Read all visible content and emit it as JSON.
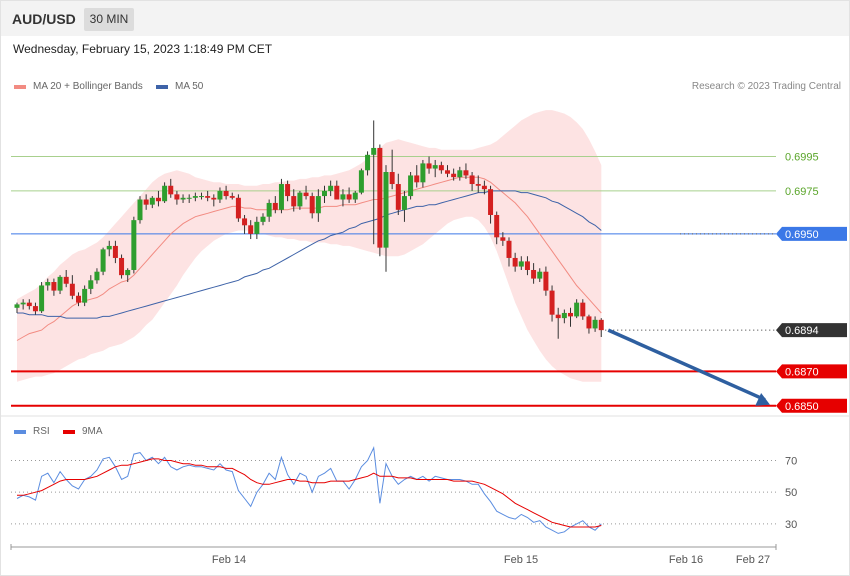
{
  "header": {
    "symbol": "AUD/USD",
    "timeframe": "30 MIN",
    "datetime": "Wednesday, February 15, 2023 1:18:49 PM CET"
  },
  "legend": {
    "ma20_label": "MA 20 + Bollinger Bands",
    "ma20_color": "#f28b82",
    "ma50_label": "MA 50",
    "ma50_color": "#3e63a8"
  },
  "credit": "Research © 2023 Trading Central",
  "colors": {
    "up": "#2e9e2e",
    "down": "#d42020",
    "band_fill": "#fde3e3",
    "support_line": "#e60000",
    "pivot_line": "#3b78e7",
    "resistance_line": "#a8d08d",
    "rsi": "#5b8de0",
    "rsi_ma": "#e60000",
    "arrow": "#2e5fa0"
  },
  "chart_data": [
    {
      "type": "candlestick",
      "ylim": [
        0.68458,
        0.70308
      ],
      "last_price": "0.6894",
      "levels": [
        {
          "label": "0.6995",
          "value": 0.6995,
          "kind": "resistance"
        },
        {
          "label": "0.6975",
          "value": 0.6975,
          "kind": "resistance"
        },
        {
          "label": "0.6950",
          "value": 0.695,
          "kind": "pivot"
        },
        {
          "label": "0.6870",
          "value": 0.687,
          "kind": "support"
        },
        {
          "label": "0.6850",
          "value": 0.685,
          "kind": "support"
        }
      ],
      "arrow": {
        "from": 0.6894,
        "to": 0.685
      },
      "x_ticks": [
        "Feb 14",
        "Feb 15",
        "Feb 16",
        "Feb 27"
      ],
      "candles": [
        [
          0.6907,
          0.691,
          0.6904,
          0.6909
        ],
        [
          0.6909,
          0.6912,
          0.6906,
          0.691
        ],
        [
          0.691,
          0.6912,
          0.6906,
          0.6908
        ],
        [
          0.6908,
          0.691,
          0.6903,
          0.6905
        ],
        [
          0.6905,
          0.6922,
          0.6904,
          0.692
        ],
        [
          0.692,
          0.6924,
          0.6917,
          0.6922
        ],
        [
          0.6922,
          0.6924,
          0.6914,
          0.6917
        ],
        [
          0.6917,
          0.6926,
          0.6915,
          0.6925
        ],
        [
          0.6925,
          0.6929,
          0.6919,
          0.6921
        ],
        [
          0.6921,
          0.6926,
          0.6912,
          0.6914
        ],
        [
          0.6914,
          0.6916,
          0.6908,
          0.691
        ],
        [
          0.691,
          0.692,
          0.6908,
          0.6918
        ],
        [
          0.6918,
          0.6926,
          0.6915,
          0.6923
        ],
        [
          0.6923,
          0.693,
          0.6921,
          0.6928
        ],
        [
          0.6928,
          0.6942,
          0.6926,
          0.6941
        ],
        [
          0.6941,
          0.6946,
          0.6937,
          0.6943
        ],
        [
          0.6943,
          0.6946,
          0.6933,
          0.6936
        ],
        [
          0.6936,
          0.6938,
          0.6924,
          0.6926
        ],
        [
          0.6926,
          0.693,
          0.6922,
          0.6929
        ],
        [
          0.6929,
          0.696,
          0.6927,
          0.6958
        ],
        [
          0.6958,
          0.6972,
          0.6956,
          0.697
        ],
        [
          0.697,
          0.6973,
          0.6964,
          0.6967
        ],
        [
          0.6967,
          0.6972,
          0.6965,
          0.6971
        ],
        [
          0.6971,
          0.6975,
          0.6966,
          0.6969
        ],
        [
          0.6969,
          0.698,
          0.6968,
          0.6978
        ],
        [
          0.6978,
          0.6982,
          0.6971,
          0.6973
        ],
        [
          0.6973,
          0.6975,
          0.6967,
          0.697
        ],
        [
          0.697,
          0.6973,
          0.6968,
          0.6971
        ],
        [
          0.6971,
          0.6973,
          0.6968,
          0.6971
        ],
        [
          0.6971,
          0.6974,
          0.6969,
          0.6972
        ],
        [
          0.6972,
          0.6974,
          0.697,
          0.6972
        ],
        [
          0.6972,
          0.6975,
          0.6969,
          0.6971
        ],
        [
          0.6971,
          0.6973,
          0.6966,
          0.697
        ],
        [
          0.697,
          0.6977,
          0.6968,
          0.6975
        ],
        [
          0.6975,
          0.6978,
          0.697,
          0.6972
        ],
        [
          0.6972,
          0.6974,
          0.697,
          0.6971
        ],
        [
          0.6971,
          0.6973,
          0.6957,
          0.6959
        ],
        [
          0.6959,
          0.6961,
          0.695,
          0.6955
        ],
        [
          0.6955,
          0.6958,
          0.6947,
          0.695
        ],
        [
          0.695,
          0.696,
          0.6947,
          0.6957
        ],
        [
          0.6957,
          0.6962,
          0.6955,
          0.696
        ],
        [
          0.696,
          0.697,
          0.6957,
          0.6968
        ],
        [
          0.6968,
          0.6972,
          0.6962,
          0.6964
        ],
        [
          0.6964,
          0.6982,
          0.6962,
          0.6979
        ],
        [
          0.6979,
          0.6981,
          0.6969,
          0.6972
        ],
        [
          0.6972,
          0.6976,
          0.6963,
          0.6966
        ],
        [
          0.6966,
          0.6975,
          0.6964,
          0.6974
        ],
        [
          0.6974,
          0.6978,
          0.697,
          0.6972
        ],
        [
          0.6972,
          0.6974,
          0.6959,
          0.6962
        ],
        [
          0.6962,
          0.6976,
          0.6957,
          0.6972
        ],
        [
          0.6972,
          0.6978,
          0.6968,
          0.6975
        ],
        [
          0.6975,
          0.6981,
          0.6972,
          0.6978
        ],
        [
          0.6978,
          0.6981,
          0.6971,
          0.697
        ],
        [
          0.697,
          0.6976,
          0.6966,
          0.6973
        ],
        [
          0.6973,
          0.6977,
          0.6968,
          0.697
        ],
        [
          0.697,
          0.6975,
          0.6968,
          0.6974
        ],
        [
          0.6974,
          0.6988,
          0.6973,
          0.6987
        ],
        [
          0.6987,
          0.6998,
          0.6984,
          0.6996
        ],
        [
          0.6996,
          0.7016,
          0.6944,
          0.7
        ],
        [
          0.7,
          0.7002,
          0.6937,
          0.6942
        ],
        [
          0.6942,
          0.699,
          0.6928,
          0.6986
        ],
        [
          0.6986,
          0.6999,
          0.6976,
          0.6979
        ],
        [
          0.6979,
          0.6985,
          0.6961,
          0.6964
        ],
        [
          0.6964,
          0.6975,
          0.6957,
          0.6972
        ],
        [
          0.6972,
          0.6986,
          0.697,
          0.6984
        ],
        [
          0.6984,
          0.699,
          0.6977,
          0.698
        ],
        [
          0.698,
          0.6993,
          0.6977,
          0.6991
        ],
        [
          0.6991,
          0.6995,
          0.6985,
          0.6988
        ],
        [
          0.6988,
          0.6993,
          0.6983,
          0.699
        ],
        [
          0.699,
          0.6992,
          0.6985,
          0.6987
        ],
        [
          0.6987,
          0.699,
          0.6983,
          0.6985
        ],
        [
          0.6985,
          0.6988,
          0.6981,
          0.6983
        ],
        [
          0.6983,
          0.6989,
          0.6981,
          0.6987
        ],
        [
          0.6987,
          0.6991,
          0.6982,
          0.6984
        ],
        [
          0.6984,
          0.6986,
          0.6975,
          0.6979
        ],
        [
          0.6979,
          0.6984,
          0.6974,
          0.6978
        ],
        [
          0.6978,
          0.6981,
          0.6973,
          0.6976
        ],
        [
          0.6976,
          0.6978,
          0.6956,
          0.6961
        ],
        [
          0.6961,
          0.6963,
          0.6944,
          0.6948
        ],
        [
          0.6948,
          0.6951,
          0.6943,
          0.6946
        ],
        [
          0.6946,
          0.6948,
          0.6931,
          0.6936
        ],
        [
          0.6936,
          0.6939,
          0.6928,
          0.6931
        ],
        [
          0.6931,
          0.6937,
          0.6929,
          0.6934
        ],
        [
          0.6934,
          0.6937,
          0.6926,
          0.6929
        ],
        [
          0.6929,
          0.6933,
          0.6921,
          0.6924
        ],
        [
          0.6924,
          0.693,
          0.6922,
          0.6928
        ],
        [
          0.6928,
          0.6931,
          0.6914,
          0.6917
        ],
        [
          0.6917,
          0.692,
          0.6899,
          0.6903
        ],
        [
          0.6903,
          0.6907,
          0.6889,
          0.6901
        ],
        [
          0.6901,
          0.6906,
          0.6898,
          0.6904
        ],
        [
          0.6904,
          0.6907,
          0.6896,
          0.6902
        ],
        [
          0.6902,
          0.6912,
          0.6901,
          0.691
        ],
        [
          0.691,
          0.6912,
          0.69,
          0.6902
        ],
        [
          0.6902,
          0.6903,
          0.6892,
          0.6895
        ],
        [
          0.6895,
          0.6902,
          0.6893,
          0.69
        ],
        [
          0.69,
          0.6901,
          0.689,
          0.6894
        ]
      ],
      "ma20": [
        0.6888,
        0.689,
        0.6892,
        0.6893,
        0.6894,
        0.6897,
        0.6899,
        0.6902,
        0.6905,
        0.6908,
        0.691,
        0.6911,
        0.6912,
        0.6913,
        0.6915,
        0.6918,
        0.692,
        0.6922,
        0.6923,
        0.6926,
        0.693,
        0.6934,
        0.6938,
        0.6942,
        0.6946,
        0.695,
        0.6953,
        0.6956,
        0.6958,
        0.696,
        0.6961,
        0.6962,
        0.6963,
        0.6964,
        0.6965,
        0.6966,
        0.6966,
        0.6965,
        0.6965,
        0.6964,
        0.6964,
        0.6964,
        0.6964,
        0.6964,
        0.6964,
        0.6965,
        0.6965,
        0.6965,
        0.6965,
        0.6965,
        0.6966,
        0.6966,
        0.6966,
        0.6967,
        0.6967,
        0.6967,
        0.6968,
        0.6969,
        0.697,
        0.697,
        0.6971,
        0.6972,
        0.6973,
        0.6974,
        0.6975,
        0.6976,
        0.6977,
        0.6978,
        0.6979,
        0.698,
        0.6981,
        0.6982,
        0.6983,
        0.6983,
        0.6983,
        0.6983,
        0.6982,
        0.698,
        0.6977,
        0.6974,
        0.6971,
        0.6968,
        0.6964,
        0.696,
        0.6955,
        0.695,
        0.6945,
        0.694,
        0.6935,
        0.693,
        0.6925,
        0.692,
        0.6916,
        0.6912,
        0.6908,
        0.6904
      ],
      "ma50": [
        0.6904,
        0.6904,
        0.6903,
        0.6903,
        0.6903,
        0.6902,
        0.6902,
        0.6902,
        0.6901,
        0.6901,
        0.6901,
        0.6901,
        0.6901,
        0.6901,
        0.6902,
        0.6902,
        0.6903,
        0.6904,
        0.6905,
        0.6906,
        0.6907,
        0.6908,
        0.6909,
        0.691,
        0.6911,
        0.6912,
        0.6913,
        0.6914,
        0.6915,
        0.6916,
        0.6917,
        0.6918,
        0.6919,
        0.692,
        0.6921,
        0.6922,
        0.6923,
        0.6925,
        0.6926,
        0.6927,
        0.6929,
        0.693,
        0.6932,
        0.6934,
        0.6936,
        0.6938,
        0.694,
        0.6942,
        0.6944,
        0.6946,
        0.6947,
        0.6949,
        0.695,
        0.6951,
        0.6953,
        0.6954,
        0.6956,
        0.6957,
        0.6958,
        0.6959,
        0.6961,
        0.6962,
        0.6963,
        0.6964,
        0.6965,
        0.6966,
        0.6966,
        0.6967,
        0.6967,
        0.6968,
        0.6969,
        0.697,
        0.6971,
        0.6972,
        0.6973,
        0.6974,
        0.6974,
        0.6975,
        0.6975,
        0.6975,
        0.6975,
        0.6975,
        0.6974,
        0.6974,
        0.6973,
        0.6972,
        0.6971,
        0.6969,
        0.6968,
        0.6966,
        0.6964,
        0.6962,
        0.696,
        0.6957,
        0.6955,
        0.6952
      ],
      "bb_upper": [
        0.6912,
        0.6914,
        0.6916,
        0.6918,
        0.6921,
        0.6925,
        0.6928,
        0.6932,
        0.6935,
        0.6938,
        0.694,
        0.6941,
        0.6943,
        0.6945,
        0.6948,
        0.6952,
        0.6956,
        0.696,
        0.6964,
        0.6968,
        0.6972,
        0.6976,
        0.698,
        0.6983,
        0.6985,
        0.6986,
        0.6987,
        0.6986,
        0.6985,
        0.6983,
        0.6982,
        0.6981,
        0.698,
        0.698,
        0.6979,
        0.6979,
        0.6979,
        0.6978,
        0.6978,
        0.6978,
        0.6979,
        0.6979,
        0.698,
        0.698,
        0.6981,
        0.6981,
        0.6982,
        0.6982,
        0.6983,
        0.6983,
        0.6984,
        0.6984,
        0.6985,
        0.6986,
        0.6987,
        0.6989,
        0.6991,
        0.6994,
        0.6997,
        0.7,
        0.7003,
        0.7004,
        0.7005,
        0.7004,
        0.7003,
        0.7002,
        0.7001,
        0.7,
        0.7,
        0.6999,
        0.6999,
        0.6999,
        0.6999,
        0.6999,
        0.6999,
        0.7,
        0.7001,
        0.7002,
        0.7004,
        0.7007,
        0.701,
        0.7013,
        0.7016,
        0.7018,
        0.702,
        0.7021,
        0.7022,
        0.7022,
        0.7021,
        0.702,
        0.7018,
        0.7015,
        0.7011,
        0.7005,
        0.6998,
        0.699
      ],
      "bb_lower": [
        0.6864,
        0.6865,
        0.6866,
        0.6867,
        0.6867,
        0.6868,
        0.6869,
        0.6871,
        0.6873,
        0.6875,
        0.6877,
        0.6878,
        0.688,
        0.6881,
        0.6882,
        0.6884,
        0.6885,
        0.6886,
        0.6888,
        0.689,
        0.6893,
        0.6897,
        0.69,
        0.6905,
        0.691,
        0.6915,
        0.692,
        0.6926,
        0.6931,
        0.6936,
        0.694,
        0.6943,
        0.6946,
        0.6948,
        0.695,
        0.6951,
        0.6952,
        0.6952,
        0.6952,
        0.6951,
        0.695,
        0.6949,
        0.6948,
        0.6948,
        0.6947,
        0.6947,
        0.6946,
        0.6946,
        0.6945,
        0.6945,
        0.6945,
        0.6944,
        0.6944,
        0.6943,
        0.6943,
        0.6942,
        0.6941,
        0.694,
        0.6939,
        0.6938,
        0.6937,
        0.6937,
        0.6937,
        0.6938,
        0.694,
        0.6942,
        0.6944,
        0.6947,
        0.695,
        0.6953,
        0.6956,
        0.6958,
        0.6959,
        0.696,
        0.696,
        0.6958,
        0.6954,
        0.6948,
        0.694,
        0.693,
        0.692,
        0.691,
        0.6902,
        0.6894,
        0.6888,
        0.6882,
        0.6877,
        0.6873,
        0.687,
        0.6868,
        0.6866,
        0.6865,
        0.6864,
        0.6864,
        0.6864,
        0.6864
      ]
    },
    {
      "type": "line",
      "legend": [
        "RSI",
        "9MA"
      ],
      "ylim": [
        17.3,
        80.4
      ],
      "y_ticks": [
        "70",
        "50",
        "30"
      ],
      "rsi": [
        46,
        48,
        47,
        45,
        60,
        62,
        56,
        63,
        58,
        54,
        52,
        58,
        60,
        64,
        71,
        72,
        66,
        58,
        60,
        74,
        75,
        70,
        72,
        68,
        72,
        66,
        64,
        66,
        67,
        66,
        66,
        65,
        64,
        68,
        64,
        63,
        51,
        46,
        41,
        50,
        55,
        62,
        58,
        72,
        61,
        55,
        62,
        60,
        50,
        60,
        62,
        65,
        57,
        57,
        52,
        58,
        66,
        70,
        78,
        43,
        68,
        60,
        55,
        58,
        60,
        58,
        60,
        57,
        60,
        59,
        58,
        58,
        58,
        57,
        55,
        55,
        49,
        44,
        38,
        36,
        34,
        33,
        36,
        34,
        31,
        32,
        28,
        26,
        24,
        25,
        28,
        30,
        32,
        28,
        26,
        30
      ],
      "rsi_ma": [
        48,
        48,
        49,
        50,
        51,
        53,
        55,
        57,
        58,
        58,
        58,
        58,
        59,
        60,
        62,
        64,
        66,
        67,
        67,
        68,
        69,
        70,
        71,
        71,
        70,
        70,
        69,
        68,
        68,
        67,
        67,
        66,
        66,
        66,
        65,
        65,
        63,
        61,
        58,
        56,
        55,
        55,
        56,
        57,
        58,
        58,
        57,
        57,
        56,
        56,
        56,
        57,
        57,
        57,
        57,
        58,
        59,
        60,
        62,
        60,
        60,
        60,
        59,
        59,
        59,
        58,
        58,
        58,
        58,
        58,
        58,
        57,
        57,
        57,
        57,
        56,
        55,
        53,
        51,
        49,
        46,
        43,
        41,
        39,
        37,
        35,
        33,
        31,
        30,
        29,
        28,
        28,
        28,
        28,
        28,
        29
      ]
    }
  ]
}
